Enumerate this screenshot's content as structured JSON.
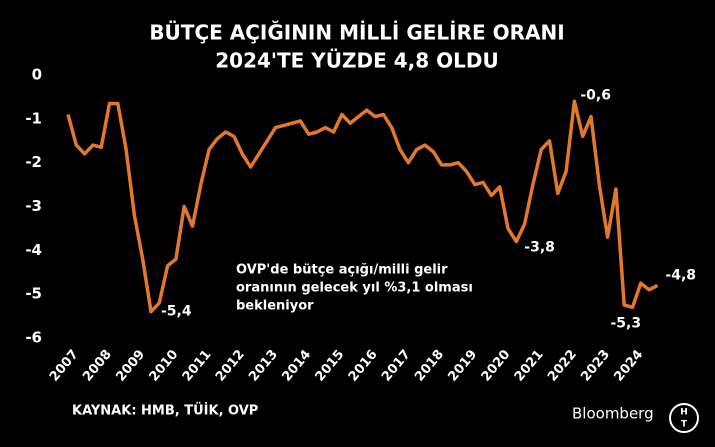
{
  "chart_data": {
    "type": "line",
    "title": [
      "BÜTÇE AÇIĞININ MİLLİ GELİRE ORANI",
      "2024'TE YÜZDE 4,8 OLDU"
    ],
    "x": [
      2007,
      2007.25,
      2007.5,
      2007.75,
      2008,
      2008.25,
      2008.5,
      2008.75,
      2009,
      2009.25,
      2009.5,
      2009.75,
      2010,
      2010.25,
      2010.5,
      2010.75,
      2011,
      2011.25,
      2011.5,
      2011.75,
      2012,
      2012.25,
      2012.5,
      2012.75,
      2013,
      2013.25,
      2013.5,
      2013.75,
      2014,
      2014.25,
      2014.5,
      2014.75,
      2015,
      2015.25,
      2015.5,
      2015.75,
      2016,
      2016.25,
      2016.5,
      2016.75,
      2017,
      2017.25,
      2017.5,
      2017.75,
      2018,
      2018.25,
      2018.5,
      2018.75,
      2019,
      2019.25,
      2019.5,
      2019.75,
      2020,
      2020.25,
      2020.5,
      2020.75,
      2021,
      2021.25,
      2021.5,
      2021.75,
      2022,
      2022.25,
      2022.5,
      2022.75,
      2023,
      2023.25,
      2023.5,
      2023.75,
      2024,
      2024.25,
      2024.5,
      2024.75
    ],
    "values": [
      -0.9,
      -1.6,
      -1.8,
      -1.6,
      -1.65,
      -0.65,
      -0.65,
      -1.7,
      -3.2,
      -4.2,
      -5.4,
      -5.2,
      -4.35,
      -4.2,
      -3.0,
      -3.45,
      -2.5,
      -1.7,
      -1.45,
      -1.3,
      -1.4,
      -1.8,
      -2.1,
      -1.8,
      -1.5,
      -1.2,
      -1.15,
      -1.1,
      -1.05,
      -1.35,
      -1.3,
      -1.2,
      -1.3,
      -0.9,
      -1.1,
      -0.95,
      -0.8,
      -0.95,
      -0.9,
      -1.2,
      -1.7,
      -2.0,
      -1.7,
      -1.6,
      -1.75,
      -2.05,
      -2.05,
      -2.0,
      -2.2,
      -2.5,
      -2.45,
      -2.75,
      -2.55,
      -3.5,
      -3.8,
      -3.4,
      -2.5,
      -1.7,
      -1.5,
      -2.7,
      -2.2,
      -0.6,
      -1.4,
      -0.95,
      -2.5,
      -3.7,
      -2.6,
      -5.25,
      -5.3,
      -4.75,
      -4.9,
      -4.8
    ],
    "value_labels": [
      null,
      null,
      null,
      null,
      null,
      null,
      null,
      null,
      null,
      null,
      "-5,4",
      null,
      null,
      null,
      null,
      null,
      null,
      null,
      null,
      null,
      null,
      null,
      null,
      null,
      null,
      null,
      null,
      null,
      null,
      null,
      null,
      null,
      null,
      null,
      null,
      null,
      null,
      null,
      null,
      null,
      null,
      null,
      null,
      null,
      null,
      null,
      null,
      null,
      null,
      null,
      null,
      null,
      null,
      null,
      "-3,8",
      null,
      null,
      null,
      null,
      null,
      null,
      "-0,6",
      null,
      null,
      null,
      null,
      null,
      null,
      "-5,3",
      null,
      null,
      "-4,8"
    ],
    "color": "#e2782c",
    "xlim": [
      2006.88,
      2025.25
    ],
    "xticks": [
      2007,
      2008,
      2009,
      2010,
      2011,
      2012,
      2013,
      2014,
      2015,
      2016,
      2017,
      2018,
      2019,
      2020,
      2021,
      2022,
      2023,
      2024
    ],
    "ylim": [
      -6,
      0
    ],
    "yticks": [
      0,
      -1,
      -2,
      -3,
      -4,
      -5,
      -6
    ],
    "annotation": [
      "OVP'de bütçe açığı/milli gelir",
      "oranının gelecek yıl  %3,1 olması",
      "bekleniyor"
    ],
    "source": "KAYNAK: HMB, TÜİK, OVP",
    "logo": "Bloomberg",
    "logo_badge": [
      "H",
      "T"
    ]
  }
}
